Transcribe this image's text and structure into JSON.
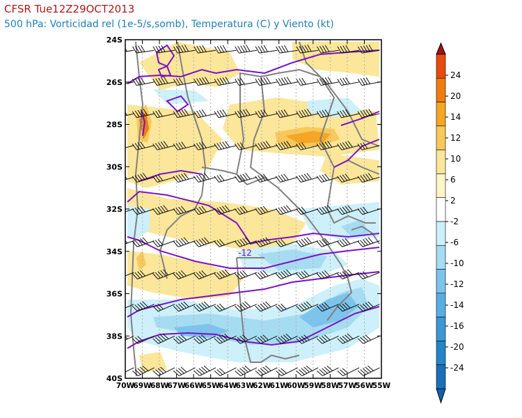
{
  "header": {
    "title": "CFSR Tue12Z29OCT2013",
    "subtitle": "500 hPa: Vorticidad rel (1e-5/s,somb), Temperatura (C) y Viento (kt)"
  },
  "map": {
    "lat_labels": [
      "24S",
      "26S",
      "28S",
      "30S",
      "32S",
      "34S",
      "36S",
      "38S",
      "40S"
    ],
    "lon_labels": [
      "70W",
      "69W",
      "68W",
      "67W",
      "66W",
      "65W",
      "64W",
      "63W",
      "62W",
      "61W",
      "60W",
      "59W",
      "58W",
      "57W",
      "56W",
      "55W"
    ],
    "isotherm_labels": [
      "-12"
    ],
    "extent": {
      "lon": [
        -70,
        -55
      ],
      "lat": [
        -40,
        -24
      ]
    }
  },
  "colorbar": {
    "labels": [
      "24",
      "20",
      "14",
      "12",
      "10",
      "6",
      "2",
      "-2",
      "-6",
      "-10",
      "-12",
      "-14",
      "-16",
      "-20",
      "-24"
    ],
    "colors": [
      "#a81010",
      "#e84a10",
      "#f07c10",
      "#f6a623",
      "#f8c85a",
      "#fbe69a",
      "#fdf6c8",
      "#ffffff",
      "#cdf0fa",
      "#a6dcf2",
      "#7cc4ec",
      "#58aee2",
      "#3b97d6",
      "#2485c8",
      "#1a6fb8",
      "#1560a8"
    ]
  },
  "colors": {
    "isotherm": "#7a10c8",
    "border": "#808080",
    "grid": "#b0b0b0"
  }
}
